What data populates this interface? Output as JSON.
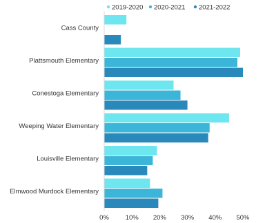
{
  "chart_data": {
    "type": "bar",
    "orientation": "horizontal",
    "categories": [
      "Cass County",
      "Plattsmouth Elementary",
      "Conestoga Elementary",
      "Weeping Water Elementary",
      "Louisville Elementary",
      "Elmwood Murdock Elementary"
    ],
    "series": [
      {
        "name": "2019-2020",
        "color": "#6ee6ef",
        "values": [
          8,
          49,
          25,
          45,
          19,
          16.5
        ]
      },
      {
        "name": "2020-2021",
        "color": "#3bb6d8",
        "values": [
          null,
          48,
          27.5,
          38,
          17.5,
          21
        ]
      },
      {
        "name": "2021-2022",
        "color": "#2a89bb",
        "values": [
          6,
          50,
          30,
          37.5,
          15.5,
          19.5
        ]
      }
    ],
    "xlim": [
      0,
      50
    ],
    "x_ticks": [
      "0%",
      "10%",
      "20%",
      "30%",
      "40%",
      "50%"
    ],
    "legend_position": "top",
    "grid": false
  }
}
